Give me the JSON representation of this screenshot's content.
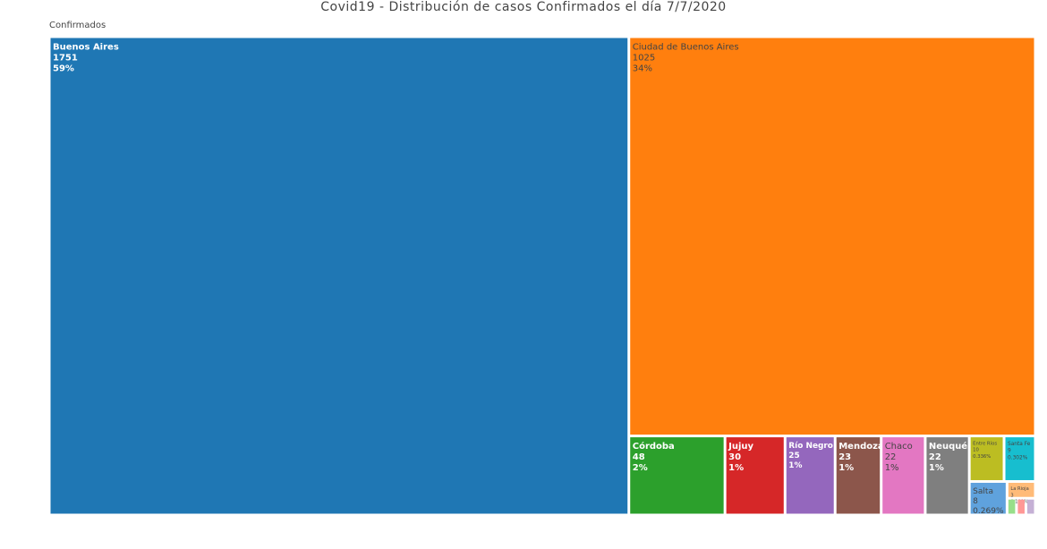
{
  "chart_data": {
    "type": "treemap",
    "title": "Covid19 - Distribución de casos Confirmados el día 7/7/2020",
    "root": "Confirmados",
    "items": [
      {
        "label": "Buenos Aires",
        "value": 1751,
        "percent": "59%",
        "color": "#1f77b4",
        "text_color": "#ffffff"
      },
      {
        "label": "Ciudad de Buenos Aires",
        "value": 1025,
        "percent": "34%",
        "color": "#ff7f0e",
        "text_color": "#444444"
      },
      {
        "label": "Córdoba",
        "value": 48,
        "percent": "2%",
        "color": "#2ca02c",
        "text_color": "#ffffff"
      },
      {
        "label": "Jujuy",
        "value": 30,
        "percent": "1%",
        "color": "#d62728",
        "text_color": "#ffffff"
      },
      {
        "label": "Río Negro",
        "value": 25,
        "percent": "1%",
        "color": "#9467bd",
        "text_color": "#ffffff"
      },
      {
        "label": "Mendoza",
        "value": 23,
        "percent": "1%",
        "color": "#8c564b",
        "text_color": "#ffffff"
      },
      {
        "label": "Chaco",
        "value": 22,
        "percent": "1%",
        "color": "#e377c2",
        "text_color": "#444444"
      },
      {
        "label": "Neuquén",
        "value": 22,
        "percent": "1%",
        "color": "#7f7f7f",
        "text_color": "#ffffff"
      },
      {
        "label": "Entre Ríos",
        "value": 10,
        "percent": "0.336%",
        "color": "#bcbd22",
        "text_color": "#444444"
      },
      {
        "label": "Santa Fe",
        "value": 9,
        "percent": "0.302%",
        "color": "#17becf",
        "text_color": "#444444"
      },
      {
        "label": "Salta",
        "value": 8,
        "percent": "0.269%",
        "color": "#5fa2dd",
        "text_color": "#444444"
      },
      {
        "label": "La Rioja",
        "value": 3,
        "percent": "0.101%",
        "color": "#ffbb78",
        "text_color": "#444444"
      },
      {
        "label": "",
        "value": 1,
        "percent": "",
        "color": "#98df8a",
        "text_color": "#444444"
      },
      {
        "label": "",
        "value": 1,
        "percent": "",
        "color": "#ff9896",
        "text_color": "#444444"
      },
      {
        "label": "",
        "value": 1,
        "percent": "",
        "color": "#c5b0d5",
        "text_color": "#444444"
      }
    ]
  }
}
